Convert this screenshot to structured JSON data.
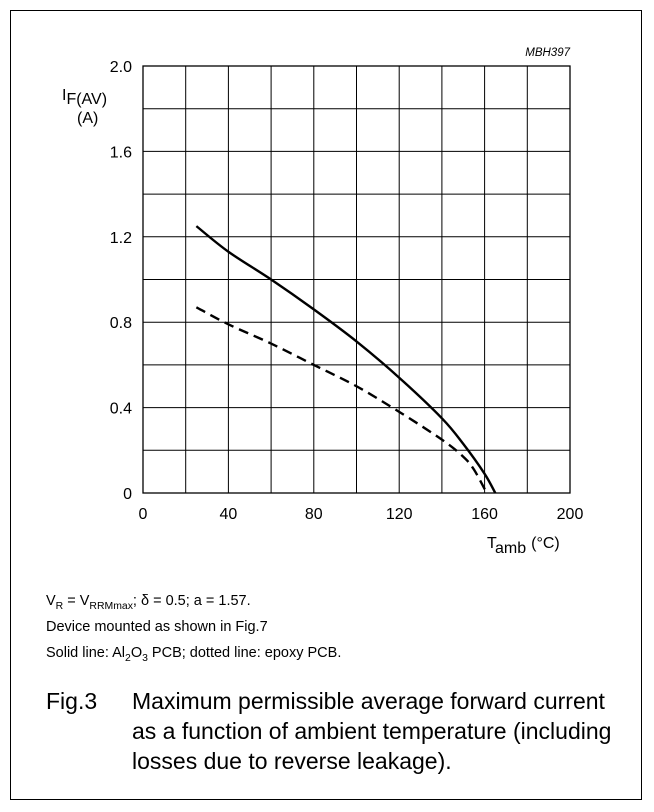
{
  "chart_data": {
    "type": "line",
    "code": "MBH397",
    "x_axis": {
      "label": "T",
      "label_sub": "amb",
      "unit": "(°C)",
      "range": [
        0,
        200
      ],
      "ticks": [
        0,
        40,
        80,
        120,
        160,
        200
      ],
      "grid_step": 20
    },
    "y_axis": {
      "label": "I",
      "label_sub": "F(AV)",
      "unit": "(A)",
      "range": [
        0,
        2.0
      ],
      "ticks": [
        "0",
        "0.4",
        "0.8",
        "1.2",
        "1.6",
        "2.0"
      ],
      "grid_step": 0.2
    },
    "grid": true,
    "series": [
      {
        "style": "solid",
        "color": "#000000",
        "x": [
          25,
          40,
          60,
          80,
          100,
          120,
          140,
          150,
          160,
          165
        ],
        "y": [
          1.25,
          1.13,
          1.0,
          0.86,
          0.71,
          0.54,
          0.35,
          0.23,
          0.09,
          0
        ]
      },
      {
        "style": "dashed",
        "color": "#000000",
        "x": [
          25,
          40,
          60,
          80,
          100,
          120,
          140,
          150,
          155,
          161
        ],
        "y": [
          0.87,
          0.79,
          0.7,
          0.6,
          0.5,
          0.38,
          0.25,
          0.17,
          0.11,
          0
        ]
      }
    ]
  },
  "notes": {
    "line1": {
      "vr": "V",
      "vr_sub": "R",
      "eq": " = V",
      "vrrm_sub": "RRMmax",
      "rest": "; δ = 0.5; a = 1.57."
    },
    "line2": "Device mounted as shown in Fig.7",
    "line3": {
      "a": "Solid line: Al",
      "s1": "2",
      "b": "O",
      "s2": "3",
      "c": " PCB; dotted line: epoxy PCB."
    }
  },
  "caption": {
    "number": "Fig.3",
    "text": "Maximum permissible average forward current as a function of ambient temperature (including losses due to reverse leakage)."
  }
}
